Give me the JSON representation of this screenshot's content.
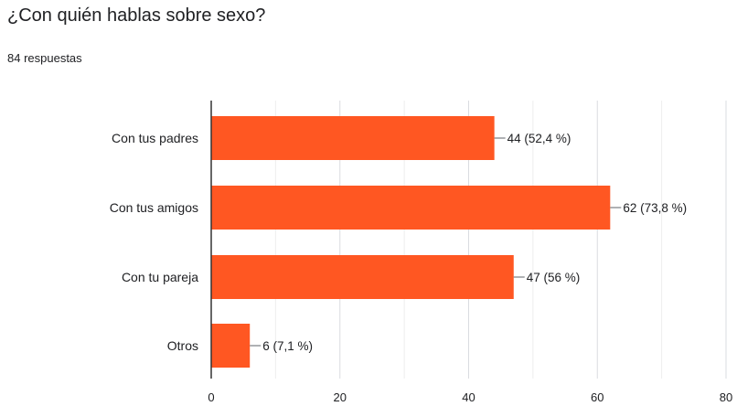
{
  "header": {
    "title": "¿Con quién hablas sobre sexo?",
    "responses": "84 respuestas"
  },
  "chart_data": {
    "type": "bar",
    "orientation": "horizontal",
    "categories": [
      "Con tus padres",
      "Con tus amigos",
      "Con tu pareja",
      "Otros"
    ],
    "values": [
      44,
      62,
      47,
      6
    ],
    "data_labels": [
      "44 (52,4 %)",
      "62 (73,8 %)",
      "47 (56 %)",
      "6 (7,1 %)"
    ],
    "xlim": [
      0,
      80
    ],
    "xticks": [
      0,
      20,
      40,
      60,
      80
    ],
    "grid": true,
    "bar_color": "#ff5722"
  }
}
